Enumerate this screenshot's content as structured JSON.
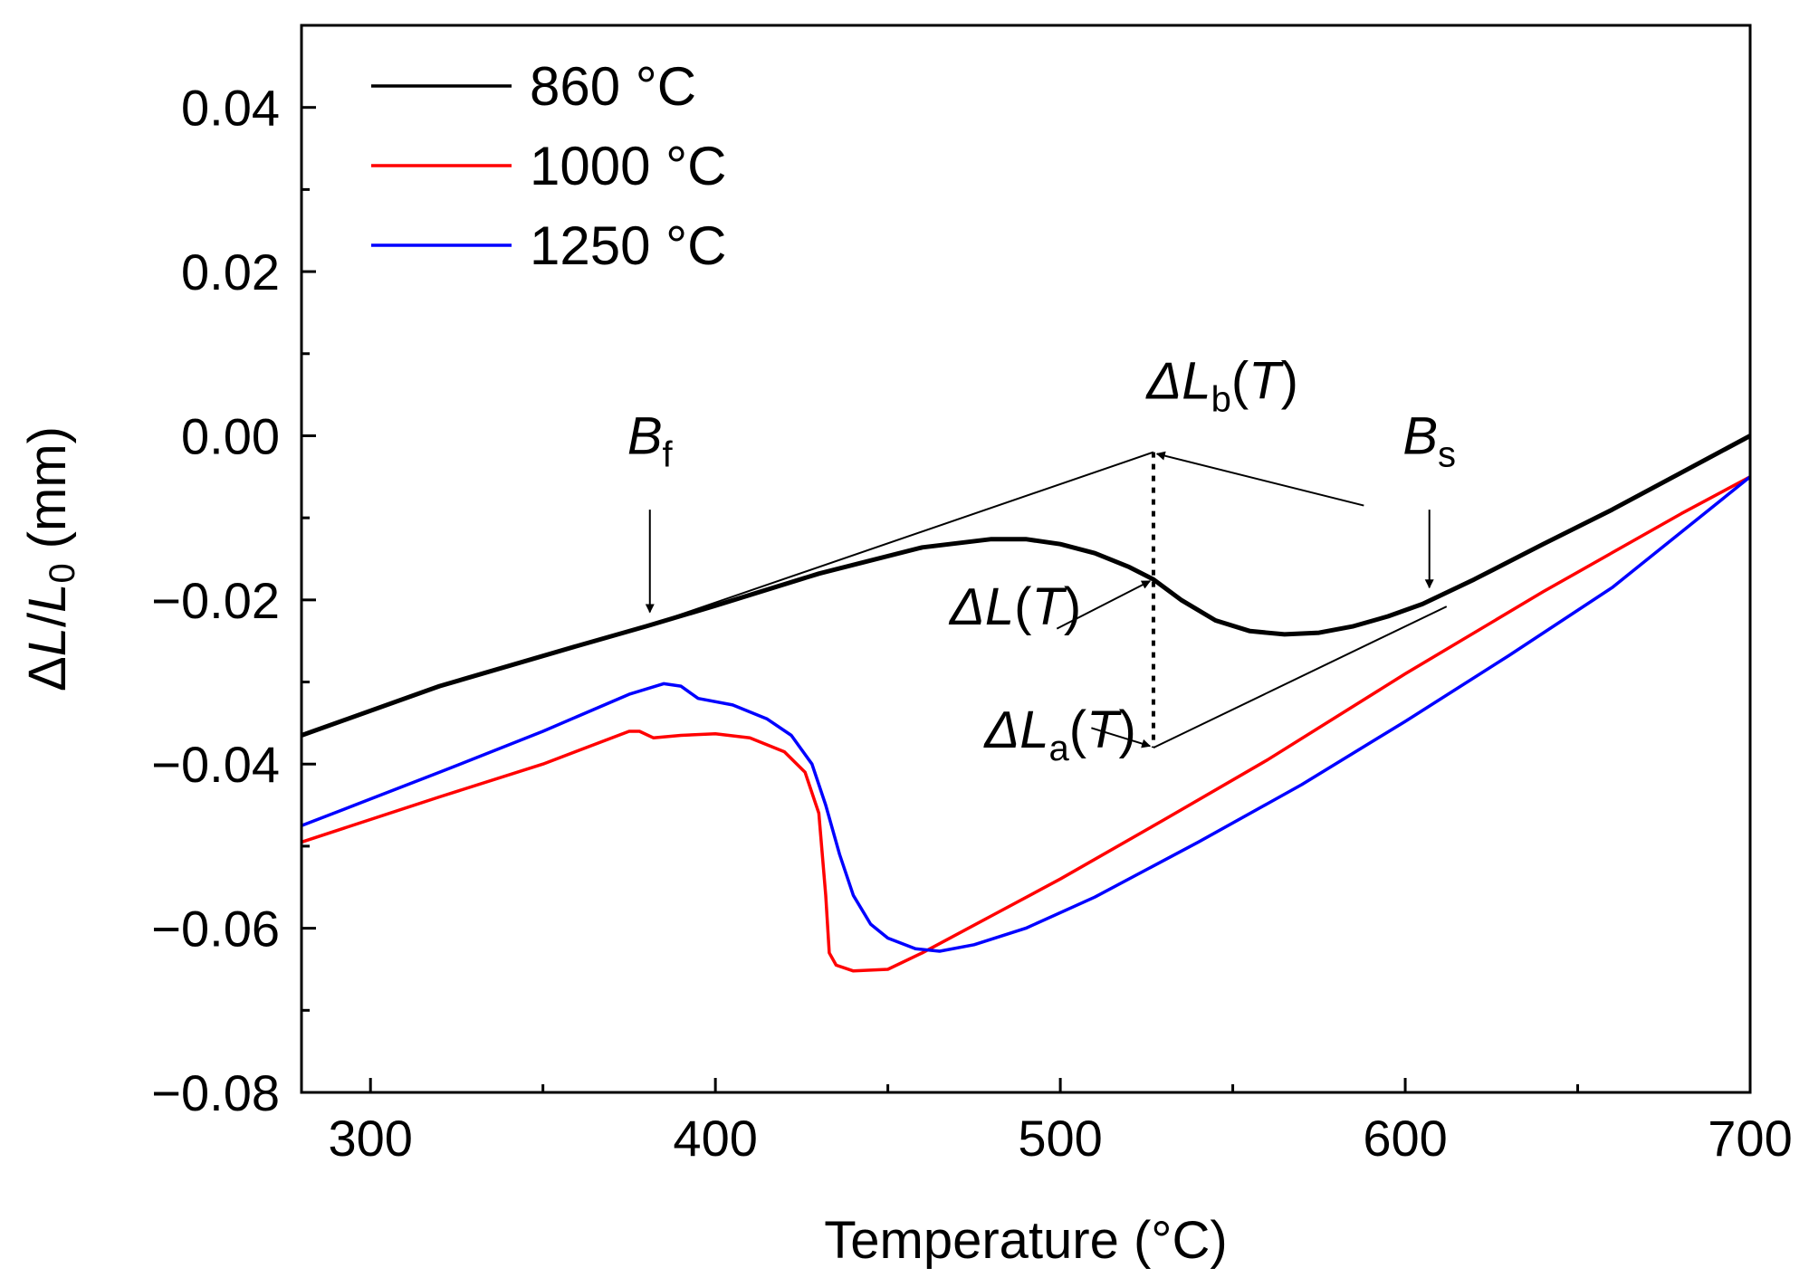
{
  "chart_data": {
    "type": "line",
    "xlabel": "Temperature (°C)",
    "ylabel": {
      "prefix": "Δ",
      "L": "L",
      "slash": "/",
      "L0": "L",
      "sub0": "0",
      "unit": "(mm)"
    },
    "xlim": [
      280,
      700
    ],
    "ylim": [
      -0.08,
      0.05
    ],
    "x_ticks": [
      300,
      400,
      500,
      600,
      700
    ],
    "x_tick_labels": [
      "300",
      "400",
      "500",
      "600",
      "700"
    ],
    "x_minor_ticks": [
      350,
      450,
      550,
      650
    ],
    "y_ticks": [
      -0.08,
      -0.06,
      -0.04,
      -0.02,
      0.0,
      0.02,
      0.04
    ],
    "y_tick_labels": [
      "−0.08",
      "−0.06",
      "−0.04",
      "−0.02",
      "0.00",
      "0.02",
      "0.04"
    ],
    "y_minor_ticks": [
      -0.07,
      -0.05,
      -0.03,
      -0.01,
      0.01,
      0.03
    ],
    "grid": false,
    "legend_position": "top-left",
    "series": [
      {
        "name": "860 °C",
        "color": "#000000",
        "x": [
          280,
          320,
          360,
          380,
          400,
          430,
          460,
          480,
          490,
          500,
          510,
          520,
          527,
          535,
          545,
          555,
          565,
          575,
          585,
          595,
          605,
          620,
          640,
          660,
          680,
          700
        ],
        "y": [
          -0.0365,
          -0.0305,
          -0.0256,
          -0.0232,
          -0.0207,
          -0.0168,
          -0.0136,
          -0.0126,
          -0.0126,
          -0.0132,
          -0.0143,
          -0.016,
          -0.0175,
          -0.02,
          -0.0225,
          -0.0238,
          -0.0242,
          -0.024,
          -0.0232,
          -0.022,
          -0.0205,
          -0.0175,
          -0.0132,
          -0.009,
          -0.0045,
          0.0
        ]
      },
      {
        "name": "1000 °C",
        "color": "#ff0000",
        "x": [
          280,
          320,
          350,
          375,
          378,
          382,
          390,
          400,
          410,
          420,
          426,
          430,
          432,
          433,
          435,
          440,
          450,
          460,
          480,
          500,
          530,
          560,
          600,
          640,
          680,
          700
        ],
        "y": [
          -0.0495,
          -0.044,
          -0.04,
          -0.036,
          -0.036,
          -0.0368,
          -0.0365,
          -0.0363,
          -0.0368,
          -0.0385,
          -0.041,
          -0.046,
          -0.056,
          -0.063,
          -0.0645,
          -0.0652,
          -0.065,
          -0.063,
          -0.0585,
          -0.054,
          -0.0468,
          -0.0395,
          -0.029,
          -0.019,
          -0.0095,
          -0.005
        ]
      },
      {
        "name": "1250 °C",
        "color": "#0000ff",
        "x": [
          280,
          320,
          350,
          375,
          385,
          390,
          395,
          405,
          415,
          422,
          428,
          432,
          436,
          440,
          445,
          450,
          458,
          465,
          475,
          490,
          510,
          540,
          570,
          600,
          630,
          660,
          700
        ],
        "y": [
          -0.0475,
          -0.041,
          -0.036,
          -0.0315,
          -0.0302,
          -0.0305,
          -0.032,
          -0.0328,
          -0.0345,
          -0.0365,
          -0.04,
          -0.045,
          -0.051,
          -0.056,
          -0.0595,
          -0.0612,
          -0.0625,
          -0.0628,
          -0.062,
          -0.06,
          -0.0562,
          -0.0495,
          -0.0425,
          -0.0348,
          -0.0268,
          -0.0185,
          -0.005
        ]
      }
    ],
    "construction_lines": [
      {
        "name": "upper-tangent-line",
        "x": [
          380,
          527
        ],
        "y": [
          -0.0232,
          -0.002
        ]
      },
      {
        "name": "lower-tangent-line",
        "x": [
          527,
          612
        ],
        "y": [
          -0.038,
          -0.0208
        ]
      }
    ],
    "vertical_dotted": {
      "x": 527,
      "y_from": -0.002,
      "y_to": -0.038
    },
    "annotations": [
      {
        "name": "bf-label",
        "text": "B",
        "sub": "f",
        "at": [
          381,
          -0.0022
        ],
        "arrow_from": [
          381,
          -0.009
        ],
        "arrow_to": [
          381,
          -0.0215
        ]
      },
      {
        "name": "bs-label",
        "text": "B",
        "sub": "s",
        "at": [
          607,
          -0.0022
        ],
        "arrow_from": [
          607,
          -0.009
        ],
        "arrow_to": [
          607,
          -0.0185
        ]
      },
      {
        "name": "dlb-label",
        "prefix": "Δ",
        "text": "L",
        "sub": "b",
        "suffix": "(T)",
        "at": [
          547,
          0.0045
        ],
        "arrow_from": [
          588,
          -0.0085
        ],
        "arrow_to": [
          528,
          -0.0022
        ]
      },
      {
        "name": "dl-label",
        "prefix": "Δ",
        "text": "L",
        "suffix": "(T)",
        "at": [
          487,
          -0.023
        ],
        "arrow_from": [
          499,
          -0.0235
        ],
        "arrow_to": [
          526,
          -0.0177
        ]
      },
      {
        "name": "dla-label",
        "prefix": "Δ",
        "text": "L",
        "sub": "a",
        "suffix": "(T)",
        "at": [
          500,
          -0.038
        ],
        "arrow_from": [
          509,
          -0.0356
        ],
        "arrow_to": [
          526,
          -0.0378
        ]
      }
    ]
  }
}
